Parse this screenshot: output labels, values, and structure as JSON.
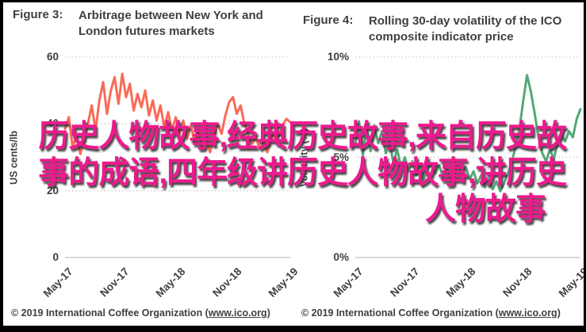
{
  "overlay": {
    "color": "#ec1a8d",
    "full_text": "历史人物故事,经典历史故事,来自历史故事的成语,四年级讲历史人物故事,讲历史人物故事",
    "lines": [
      "历史人物故事,经典历史故事,来自历史故",
      "事的成语,四年级讲历史人物故事,讲历史",
      "人物故事"
    ]
  },
  "chart_data": [
    {
      "type": "line",
      "figure_label": "Figure 3:",
      "title": "Arbitrage between New York and London futures markets",
      "ylabel": "US cents/lb",
      "xlabel": "",
      "xticks": [
        "May-17",
        "Nov-17",
        "May-18",
        "Nov-18",
        "May-19"
      ],
      "yticks": [
        60,
        40,
        20,
        0
      ],
      "ytick_labels": [
        "60",
        "40",
        "20",
        "0"
      ],
      "ylim": [
        0,
        60
      ],
      "grid": "horizontal-dotted",
      "legend": "none",
      "line_color": "#f86c58",
      "x_range": [
        "May-17",
        "May-19"
      ],
      "values": [
        38.5,
        42,
        33,
        36.5,
        31,
        35,
        40,
        45.5,
        38,
        47,
        52.5,
        43,
        50,
        54,
        46,
        55,
        48,
        52,
        44,
        49,
        45,
        50,
        42.5,
        47,
        41,
        45.5,
        39,
        43.5,
        38,
        42,
        37,
        41,
        35.5,
        39.5,
        34,
        38,
        32.5,
        36.5,
        31.5,
        35.5,
        40,
        37,
        42.5,
        46.5,
        48,
        43,
        45.5,
        40,
        37,
        34,
        36,
        32.5,
        34.5,
        31.5,
        35,
        37.5,
        36,
        39.5,
        41.5,
        40.5
      ],
      "footer": {
        "prefix": "© 2019 International Coffee Organization (",
        "link": "www.ico.org",
        "suffix": ")"
      }
    },
    {
      "type": "line",
      "figure_label": "Figure 4:",
      "title": "Rolling 30-day volatility of the ICO composite indicator price",
      "ylabel": "Volatility (%)",
      "xlabel": "",
      "xticks": [
        "May-17",
        "Nov-17",
        "May-18",
        "Nov-18",
        "May-19"
      ],
      "yticks": [
        10,
        5,
        0
      ],
      "ytick_labels": [
        "10%",
        "5%",
        "0%"
      ],
      "ylim": [
        0,
        10
      ],
      "grid": "horizontal-dotted",
      "legend": "none",
      "line_color": "#54a878",
      "x_range": [
        "May-17",
        "May-19"
      ],
      "values": [
        5.6,
        6.8,
        5.1,
        6.5,
        5.3,
        6.6,
        5.7,
        6.3,
        5.2,
        5.8,
        4.7,
        5.4,
        4.5,
        5.0,
        4.3,
        4.8,
        4.1,
        4.6,
        3.9,
        4.4,
        4.7,
        4.2,
        4.6,
        4.0,
        4.5,
        3.8,
        4.3,
        4.6,
        4.1,
        4.5,
        3.9,
        4.3,
        3.7,
        4.1,
        3.5,
        3.9,
        3.4,
        3.8,
        3.3,
        3.7,
        4.2,
        4.8,
        5.5,
        6.4,
        7.8,
        9.1,
        8.3,
        7.2,
        6.0,
        5.2,
        4.8,
        5.4,
        4.9,
        5.7,
        6.1,
        5.8,
        6.3,
        6.0,
        6.9,
        7.4
      ],
      "footer": {
        "prefix": "© 2019 International Coffee Organization (",
        "link": "www.ico.org",
        "suffix": ")"
      }
    }
  ]
}
